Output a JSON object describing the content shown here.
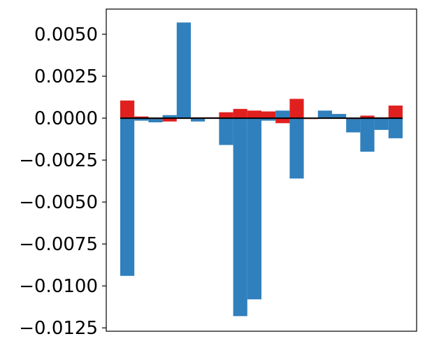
{
  "chart_data": {
    "type": "bar",
    "title": "",
    "xlabel": "",
    "ylabel": "",
    "ylim": [
      -0.0127,
      0.0065
    ],
    "x_ticks_visible": false,
    "grid": false,
    "y_ticks": [
      {
        "value": 0.005,
        "label": "0.0050"
      },
      {
        "value": 0.0025,
        "label": "0.0025"
      },
      {
        "value": 0.0,
        "label": "0.0000"
      },
      {
        "value": -0.0025,
        "label": "−0.0025"
      },
      {
        "value": -0.005,
        "label": "−0.0050"
      },
      {
        "value": -0.0075,
        "label": "−0.0075"
      },
      {
        "value": -0.01,
        "label": "−0.0100"
      },
      {
        "value": -0.0125,
        "label": "−0.0125"
      }
    ],
    "bar_count": 20,
    "series": [
      {
        "color": "#3080bd",
        "values": [
          -0.0094,
          -0.00015,
          -0.00025,
          0.00018,
          0.0057,
          -0.0002,
          5e-05,
          -0.0016,
          -0.0118,
          -0.0108,
          -0.00015,
          0.00045,
          -0.0036,
          2e-05,
          0.00045,
          0.00025,
          -0.00085,
          -0.002,
          -0.0007,
          -0.0012
        ]
      },
      {
        "color": "#e0201f",
        "values": [
          0.00105,
          0.0001,
          -5e-05,
          -0.0002,
          0.0,
          5e-05,
          5e-05,
          0.00035,
          0.00055,
          0.00045,
          0.0004,
          -0.0003,
          0.00115,
          -5e-05,
          0.0,
          0.0,
          -5e-05,
          0.00015,
          5e-05,
          0.00075
        ]
      }
    ],
    "zero_line_color": "#000000"
  }
}
